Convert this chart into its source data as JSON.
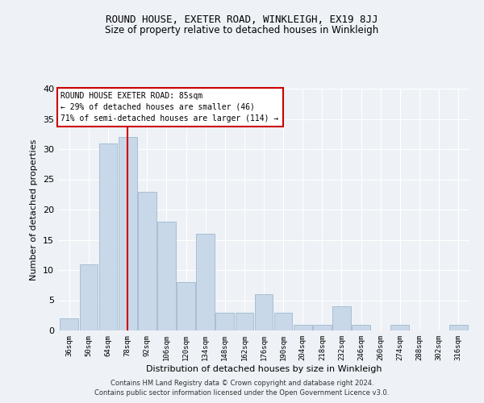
{
  "title": "ROUND HOUSE, EXETER ROAD, WINKLEIGH, EX19 8JJ",
  "subtitle": "Size of property relative to detached houses in Winkleigh",
  "xlabel": "Distribution of detached houses by size in Winkleigh",
  "ylabel": "Number of detached properties",
  "bar_values": [
    2,
    11,
    31,
    32,
    23,
    18,
    8,
    16,
    3,
    3,
    6,
    3,
    1,
    1,
    4,
    1,
    0,
    1,
    0,
    0,
    1
  ],
  "bin_labels": [
    "36sqm",
    "50sqm",
    "64sqm",
    "78sqm",
    "92sqm",
    "106sqm",
    "120sqm",
    "134sqm",
    "148sqm",
    "162sqm",
    "176sqm",
    "190sqm",
    "204sqm",
    "218sqm",
    "232sqm",
    "246sqm",
    "260sqm",
    "274sqm",
    "288sqm",
    "302sqm",
    "316sqm"
  ],
  "bin_edges": [
    36,
    50,
    64,
    78,
    92,
    106,
    120,
    134,
    148,
    162,
    176,
    190,
    204,
    218,
    232,
    246,
    260,
    274,
    288,
    302,
    316,
    330
  ],
  "bar_color": "#c8d8e8",
  "bar_edge_color": "#a0b8d0",
  "vline_x": 85,
  "vline_color": "#cc0000",
  "annotation_title": "ROUND HOUSE EXETER ROAD: 85sqm",
  "annotation_line1": "← 29% of detached houses are smaller (46)",
  "annotation_line2": "71% of semi-detached houses are larger (114) →",
  "annotation_box_color": "#ffffff",
  "annotation_box_edge": "#cc0000",
  "ylim": [
    0,
    40
  ],
  "yticks": [
    0,
    5,
    10,
    15,
    20,
    25,
    30,
    35,
    40
  ],
  "background_color": "#eef2f6",
  "footer1": "Contains HM Land Registry data © Crown copyright and database right 2024.",
  "footer2": "Contains public sector information licensed under the Open Government Licence v3.0."
}
